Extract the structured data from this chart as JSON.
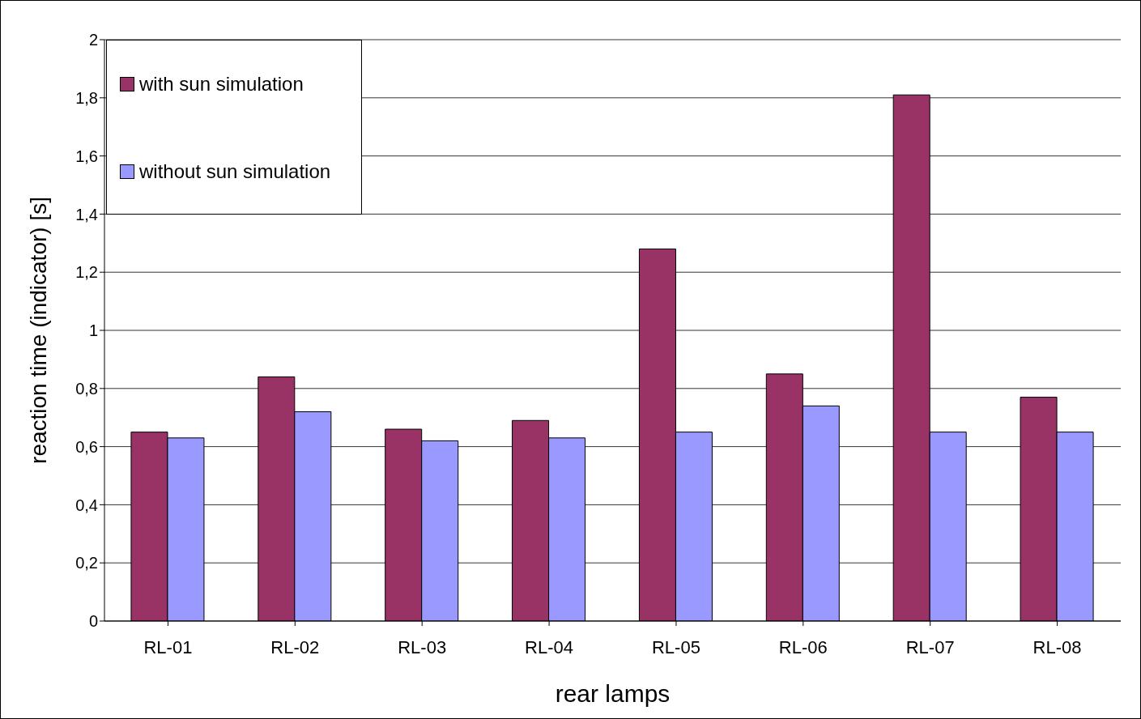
{
  "chart_data": {
    "type": "bar",
    "xlabel": "rear lamps",
    "ylabel": "reaction time (indicator) [s]",
    "categories": [
      "RL-01",
      "RL-02",
      "RL-03",
      "RL-04",
      "RL-05",
      "RL-06",
      "RL-07",
      "RL-08"
    ],
    "series": [
      {
        "name": "with sun simulation",
        "color": "#993366",
        "values": [
          0.65,
          0.84,
          0.66,
          0.69,
          1.28,
          0.85,
          1.81,
          0.77
        ]
      },
      {
        "name": "without sun simulation",
        "color": "#9999ff",
        "values": [
          0.63,
          0.72,
          0.62,
          0.63,
          0.65,
          0.74,
          0.65,
          0.65
        ]
      }
    ],
    "ylim": [
      0,
      2
    ],
    "yticks": [
      0,
      {
        "value": 0.2,
        "label": "0,2"
      },
      {
        "value": 0.4,
        "label": "0,4"
      },
      {
        "value": 0.6,
        "label": "0,6"
      },
      {
        "value": 0.8,
        "label": "0,8"
      },
      1,
      {
        "value": 1.2,
        "label": "1,2"
      },
      {
        "value": 1.4,
        "label": "1,4"
      },
      {
        "value": 1.6,
        "label": "1,6"
      },
      {
        "value": 1.8,
        "label": "1,8"
      },
      2
    ],
    "grid": "y",
    "legend": "top left"
  }
}
